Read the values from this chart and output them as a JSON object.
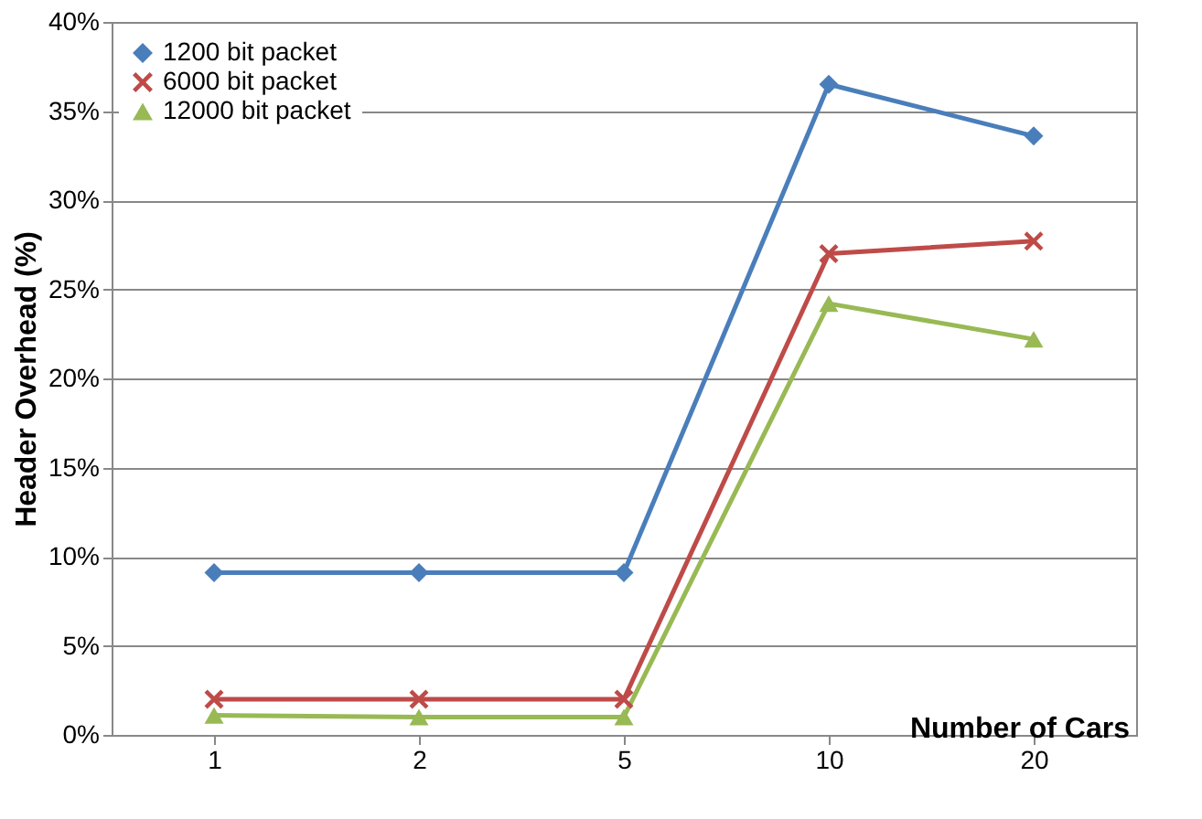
{
  "chart_data": {
    "type": "line",
    "xlabel": "Number of Cars",
    "ylabel": "Header Overhead (%)",
    "categories": [
      "1",
      "2",
      "5",
      "10",
      "20"
    ],
    "series": [
      {
        "name": "1200 bit packet",
        "color": "#4a7ebb",
        "marker": "diamond",
        "values": [
          9.1,
          9.1,
          9.1,
          36.5,
          33.6
        ]
      },
      {
        "name": "6000 bit packet",
        "color": "#be4b48",
        "marker": "cross",
        "values": [
          2.0,
          2.0,
          2.0,
          27.0,
          27.7
        ]
      },
      {
        "name": "12000 bit packet",
        "color": "#98b954",
        "marker": "triangle",
        "values": [
          1.1,
          1.0,
          1.0,
          24.2,
          22.2
        ]
      }
    ],
    "ylim": [
      0,
      40
    ],
    "yticks": [
      {
        "value": 0,
        "label": "0%"
      },
      {
        "value": 5,
        "label": "5%"
      },
      {
        "value": 10,
        "label": "10%"
      },
      {
        "value": 15,
        "label": "15%"
      },
      {
        "value": 20,
        "label": "20%"
      },
      {
        "value": 25,
        "label": "25%"
      },
      {
        "value": 30,
        "label": "30%"
      },
      {
        "value": 35,
        "label": "35%"
      },
      {
        "value": 40,
        "label": "40%"
      }
    ],
    "grid": "y",
    "legend": "top left",
    "line_style": "solid"
  }
}
